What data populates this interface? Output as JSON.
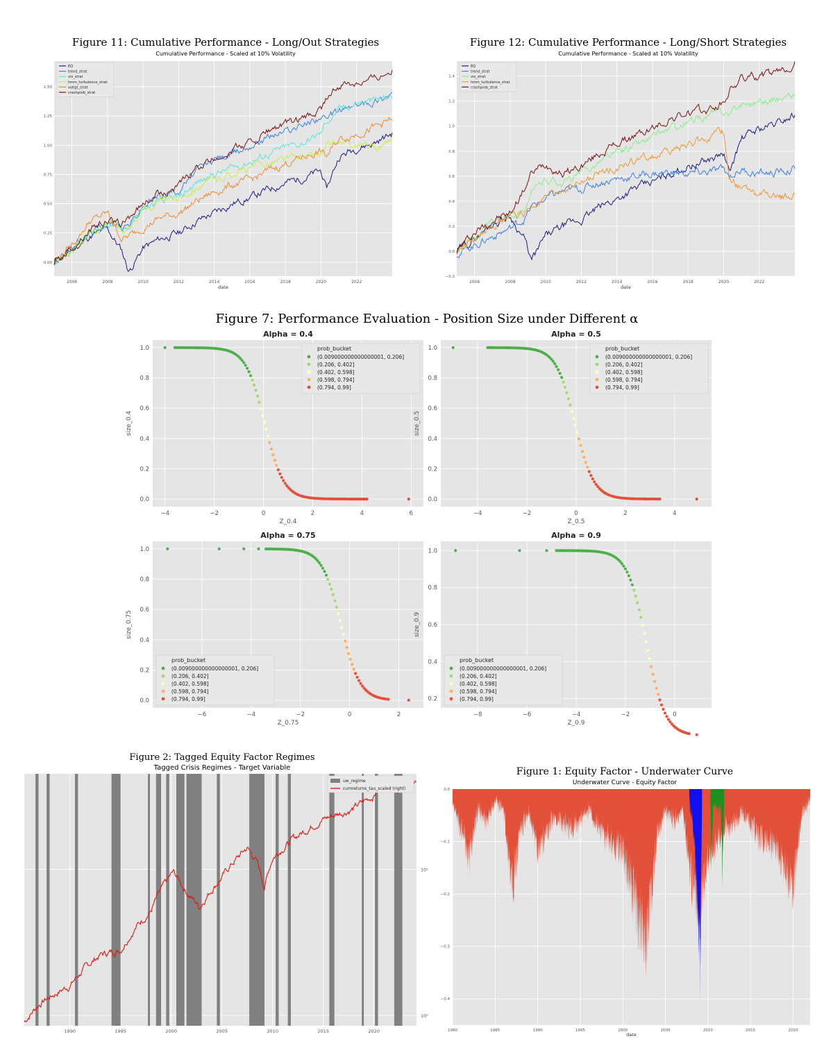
{
  "colors": {
    "panel_bg": "#e5e5e5",
    "grid": "#ffffff",
    "tick_text": "#555555",
    "bucket1": "#4daf4a",
    "bucket2": "#a6d96a",
    "bucket3": "#ffffbf",
    "bucket4": "#fdae61",
    "bucket5": "#e6503a",
    "regime_band": "#808080",
    "price_line": "#e8150b",
    "underwater_fill": "#e2503a",
    "crisis_blue": "#1010ee",
    "crisis_green": "#1f8f1f"
  },
  "figures": {
    "fig11": {
      "caption": "Figure 11: Cumulative Performance - Long/Out Strategies",
      "title": "Cumulative Performance - Scaled at 10% Volatility",
      "xlabel": "date",
      "x_ticks": [
        "2006",
        "2008",
        "2010",
        "2012",
        "2014",
        "2016",
        "2018",
        "2020",
        "2022"
      ],
      "y_ticks": [
        "0.00",
        "0.25",
        "0.50",
        "0.75",
        "1.00",
        "1.25",
        "1.50"
      ]
    },
    "fig12": {
      "caption": "Figure 12: Cumulative Performance - Long/Short Strategies",
      "title": "Cumulative Performance - Scaled at 10% Volatility",
      "xlabel": "date",
      "x_ticks": [
        "2006",
        "2008",
        "2010",
        "2012",
        "2014",
        "2016",
        "2018",
        "2020",
        "2022"
      ],
      "y_ticks": [
        "−0.2",
        "0.0",
        "0.2",
        "0.4",
        "0.6",
        "0.8",
        "1.0",
        "1.2",
        "1.4"
      ]
    },
    "fig7": {
      "caption": "Figure 7: Performance Evaluation - Position Size under Different α",
      "legend_title": "prob_bucket",
      "buckets": [
        "(0.009000000000000001, 0.206]",
        "(0.206, 0.402]",
        "(0.402, 0.598]",
        "(0.598, 0.794]",
        "(0.794, 0.99]"
      ],
      "panels": [
        {
          "title": "Alpha = 0.4",
          "xlabel": "Z_0.4",
          "ylabel": "size_0.4",
          "x_ticks": [
            "−4",
            "−2",
            "0",
            "2",
            "4",
            "6"
          ],
          "y_ticks": [
            "0.0",
            "0.2",
            "0.4",
            "0.6",
            "0.8",
            "1.0"
          ]
        },
        {
          "title": "Alpha = 0.5",
          "xlabel": "Z_0.5",
          "ylabel": "size_0.5",
          "x_ticks": [
            "−4",
            "−2",
            "0",
            "2",
            "4"
          ],
          "y_ticks": [
            "0.0",
            "0.2",
            "0.4",
            "0.6",
            "0.8",
            "1.0"
          ]
        },
        {
          "title": "Alpha = 0.75",
          "xlabel": "Z_0.75",
          "ylabel": "size_0.75",
          "x_ticks": [
            "−6",
            "−4",
            "−2",
            "0",
            "2"
          ],
          "y_ticks": [
            "0.0",
            "0.2",
            "0.4",
            "0.6",
            "0.8",
            "1.0"
          ]
        },
        {
          "title": "Alpha = 0.9",
          "xlabel": "Z_0.9",
          "ylabel": "size_0.9",
          "x_ticks": [
            "−8",
            "−6",
            "−4",
            "−2",
            "0"
          ],
          "y_ticks": [
            "0.2",
            "0.4",
            "0.6",
            "0.8",
            "1.0"
          ]
        }
      ]
    },
    "fig2": {
      "caption": "Figure 2: Tagged Equity Factor Regimes",
      "title": "Tagged Crisis Regimes - Target Variable",
      "x_ticks": [
        "1990",
        "1995",
        "2000",
        "2005",
        "2010",
        "2015",
        "2020"
      ],
      "y_right_ticks": [
        "10¹",
        "10⁰"
      ],
      "legend": [
        "uw_regime",
        "cumreturns_tau_scaled (right)"
      ]
    },
    "fig1": {
      "caption": "Figure 1: Equity Factor - Underwater Curve",
      "title": "Underwater Curve - Equity Factor",
      "xlabel": "date",
      "x_ticks": [
        "1980",
        "1985",
        "1990",
        "1995",
        "2000",
        "2005",
        "2010",
        "2015",
        "2020"
      ],
      "y_ticks": [
        "0.0",
        "−0.1",
        "−0.2",
        "−0.3",
        "−0.4"
      ]
    }
  },
  "chart_data": [
    {
      "type": "line",
      "title": "Cumulative Performance - Scaled at 10% Volatility",
      "xlabel": "date",
      "xlim": [
        2005,
        2024
      ],
      "ylim": [
        -0.12,
        1.72
      ],
      "x": [
        2005,
        2006,
        2007,
        2008,
        2008.8,
        2009.2,
        2010,
        2011,
        2012,
        2013,
        2014,
        2015,
        2016,
        2017,
        2018,
        2019,
        2020,
        2020.3,
        2021,
        2022,
        2023,
        2024
      ],
      "series": [
        {
          "name": "EQ",
          "color": "#1a1a80",
          "values": [
            0.0,
            0.1,
            0.22,
            0.28,
            0.1,
            -0.08,
            0.12,
            0.2,
            0.25,
            0.35,
            0.42,
            0.5,
            0.55,
            0.62,
            0.68,
            0.72,
            0.78,
            0.62,
            0.9,
            0.98,
            1.02,
            1.1
          ]
        },
        {
          "name": "trend_strat",
          "color": "#3a7ee8",
          "values": [
            0.0,
            0.12,
            0.25,
            0.35,
            0.3,
            0.32,
            0.48,
            0.58,
            0.62,
            0.78,
            0.88,
            0.92,
            1.0,
            1.08,
            1.12,
            1.18,
            1.25,
            1.2,
            1.3,
            1.34,
            1.38,
            1.45
          ]
        },
        {
          "name": "vix_strat",
          "color": "#55e8d8",
          "values": [
            0.0,
            0.1,
            0.24,
            0.33,
            0.3,
            0.3,
            0.45,
            0.52,
            0.55,
            0.68,
            0.75,
            0.8,
            0.86,
            0.92,
            0.98,
            1.02,
            1.1,
            1.2,
            1.3,
            1.36,
            1.38,
            1.42
          ]
        },
        {
          "name": "hmm_turbulence_strat",
          "color": "#c8f040",
          "values": [
            0.0,
            0.1,
            0.24,
            0.33,
            0.3,
            0.3,
            0.45,
            0.52,
            0.55,
            0.65,
            0.7,
            0.76,
            0.8,
            0.85,
            0.88,
            0.9,
            0.92,
            0.98,
            1.02,
            1.0,
            0.98,
            1.02
          ]
        },
        {
          "name": "voltgt_strat",
          "color": "#f08a30",
          "values": [
            0.0,
            0.15,
            0.35,
            0.42,
            0.2,
            0.22,
            0.3,
            0.38,
            0.42,
            0.52,
            0.6,
            0.66,
            0.7,
            0.78,
            0.84,
            0.9,
            0.95,
            0.9,
            1.05,
            1.1,
            1.15,
            1.22
          ]
        },
        {
          "name": "crashprob_strat",
          "color": "#7a1010",
          "values": [
            0.0,
            0.12,
            0.28,
            0.36,
            0.32,
            0.38,
            0.5,
            0.6,
            0.65,
            0.8,
            0.88,
            0.96,
            1.02,
            1.12,
            1.18,
            1.22,
            1.3,
            1.4,
            1.5,
            1.55,
            1.58,
            1.66
          ]
        }
      ]
    },
    {
      "type": "line",
      "title": "Cumulative Performance - Scaled at 10% Volatility",
      "xlabel": "date",
      "xlim": [
        2005,
        2024
      ],
      "ylim": [
        -0.2,
        1.52
      ],
      "x": [
        2005,
        2006,
        2007,
        2008,
        2008.8,
        2009.2,
        2010,
        2011,
        2012,
        2013,
        2014,
        2015,
        2016,
        2017,
        2018,
        2019,
        2020,
        2020.3,
        2021,
        2022,
        2023,
        2024
      ],
      "series": [
        {
          "name": "EQ",
          "color": "#1a1a80",
          "values": [
            0.0,
            0.1,
            0.22,
            0.28,
            0.1,
            -0.08,
            0.12,
            0.2,
            0.25,
            0.35,
            0.42,
            0.5,
            0.55,
            0.62,
            0.68,
            0.72,
            0.78,
            0.62,
            0.9,
            0.98,
            1.02,
            1.1
          ]
        },
        {
          "name": "trend_strat",
          "color": "#3a7ee8",
          "values": [
            -0.02,
            0.05,
            0.12,
            0.18,
            0.26,
            0.35,
            0.42,
            0.48,
            0.5,
            0.55,
            0.58,
            0.6,
            0.62,
            0.63,
            0.62,
            0.63,
            0.65,
            0.6,
            0.65,
            0.62,
            0.63,
            0.65
          ]
        },
        {
          "name": "vix_strat",
          "color": "#88ee88",
          "values": [
            0.0,
            0.12,
            0.22,
            0.3,
            0.35,
            0.45,
            0.58,
            0.55,
            0.62,
            0.72,
            0.78,
            0.85,
            0.9,
            0.98,
            1.02,
            1.08,
            1.12,
            1.1,
            1.18,
            1.2,
            1.22,
            1.25
          ]
        },
        {
          "name": "hmm_turbulence_strat",
          "color": "#f0962e",
          "values": [
            0.0,
            0.1,
            0.2,
            0.28,
            0.3,
            0.35,
            0.42,
            0.5,
            0.55,
            0.62,
            0.68,
            0.72,
            0.76,
            0.8,
            0.85,
            0.9,
            0.95,
            0.6,
            0.5,
            0.45,
            0.42,
            0.45
          ]
        },
        {
          "name": "crashprob_strat",
          "color": "#7a1010",
          "values": [
            0.0,
            0.15,
            0.25,
            0.3,
            0.5,
            0.62,
            0.7,
            0.62,
            0.68,
            0.78,
            0.86,
            0.92,
            0.98,
            1.06,
            1.1,
            1.12,
            1.18,
            1.28,
            1.38,
            1.4,
            1.42,
            1.5
          ]
        }
      ]
    },
    {
      "type": "scatter",
      "title": "Alpha = 0.4",
      "xlabel": "Z_0.4",
      "ylabel": "size_0.4",
      "xlim": [
        -4.5,
        6.5
      ],
      "ylim": [
        -0.05,
        1.05
      ],
      "legend_title": "prob_bucket",
      "alpha": 0.4,
      "x_range": [
        -3.6,
        4.2
      ],
      "outliers_x": [
        -4.0,
        -2.8,
        -2.2,
        2.8,
        3.3,
        4.2,
        5.9
      ]
    },
    {
      "type": "scatter",
      "title": "Alpha = 0.5",
      "xlabel": "Z_0.5",
      "ylabel": "size_0.5",
      "xlim": [
        -5.5,
        5.5
      ],
      "ylim": [
        -0.05,
        1.05
      ],
      "legend_title": "prob_bucket",
      "alpha": 0.5,
      "x_range": [
        -3.6,
        3.4
      ],
      "outliers_x": [
        -5.0,
        -3.5,
        -2.8,
        2.8,
        3.4,
        4.9
      ]
    },
    {
      "type": "scatter",
      "title": "Alpha = 0.75",
      "xlabel": "Z_0.75",
      "ylabel": "size_0.75",
      "xlim": [
        -8,
        3
      ],
      "ylim": [
        -0.05,
        1.05
      ],
      "legend_title": "prob_bucket",
      "alpha": 0.75,
      "x_range": [
        -3.4,
        1.6
      ],
      "outliers_x": [
        -7.4,
        -5.3,
        -4.3,
        -3.7,
        2.4
      ]
    },
    {
      "type": "scatter",
      "title": "Alpha = 0.9",
      "xlabel": "Z_0.9",
      "ylabel": "size_0.9",
      "xlim": [
        -9.5,
        1.5
      ],
      "ylim": [
        0.15,
        1.05
      ],
      "legend_title": "prob_bucket",
      "alpha": 0.9,
      "x_range": [
        -4.8,
        0.6
      ],
      "outliers_x": [
        -8.9,
        -6.3,
        -5.2,
        -4.6,
        0.9
      ]
    },
    {
      "type": "area",
      "title": "Tagged Crisis Regimes - Target Variable",
      "xlim": [
        1985.5,
        2024.2
      ],
      "legend": [
        "uw_regime",
        "cumreturns_tau_scaled (right)"
      ],
      "regimes": [
        [
          1986.6,
          1986.9
        ],
        [
          1987.7,
          1988.0
        ],
        [
          1990.5,
          1990.8
        ],
        [
          1994.1,
          1995.0
        ],
        [
          1997.7,
          1997.9
        ],
        [
          1998.5,
          1999.0
        ],
        [
          1999.5,
          1999.8
        ],
        [
          2000.5,
          2001.3
        ],
        [
          2001.5,
          2003.0
        ],
        [
          2004.5,
          2004.8
        ],
        [
          2007.7,
          2009.2
        ],
        [
          2010.3,
          2010.6
        ],
        [
          2011.5,
          2011.8
        ],
        [
          2015.6,
          2016.1
        ],
        [
          2018.8,
          2019.0
        ],
        [
          2020.1,
          2020.4
        ],
        [
          2022.0,
          2022.8
        ]
      ],
      "series": [
        {
          "name": "cumreturns_tau_scaled",
          "log_scale": true,
          "x": [
            1985.5,
            1987,
            1990,
            1993,
            1995,
            1998,
            2000.2,
            2001.5,
            2002.8,
            2005,
            2007.5,
            2008.5,
            2009.2,
            2010,
            2013,
            2015,
            2018,
            2020,
            2021,
            2022,
            2023,
            2024.2
          ],
          "values": [
            0.9,
            1.2,
            1.6,
            2.6,
            2.8,
            5.2,
            9.5,
            7.0,
            5.5,
            8.8,
            14.0,
            11.0,
            7.5,
            12.0,
            18.0,
            22.0,
            26.0,
            32.0,
            40.0,
            36.0,
            35.0,
            40.0
          ]
        }
      ]
    },
    {
      "type": "area",
      "title": "Underwater Curve - Equity Factor",
      "xlabel": "date",
      "xlim": [
        1980,
        2022
      ],
      "ylim": [
        -0.45,
        0.0
      ],
      "series": [
        {
          "name": "drawdown",
          "x": [
            1980,
            1981,
            1982,
            1983,
            1984,
            1985,
            1986,
            1987,
            1988,
            1989,
            1990,
            1992,
            1994,
            1996,
            1998,
            2000,
            2001,
            2002,
            2002.8,
            2003.2,
            2004,
            2005,
            2006,
            2007,
            2008,
            2009,
            2010,
            2012,
            2014,
            2016,
            2018,
            2020,
            2021,
            2022
          ],
          "values": [
            -0.03,
            -0.1,
            -0.16,
            -0.05,
            -0.08,
            -0.03,
            -0.05,
            -0.24,
            -0.1,
            -0.05,
            -0.15,
            -0.07,
            -0.1,
            -0.05,
            -0.12,
            -0.16,
            -0.24,
            -0.33,
            -0.38,
            -0.3,
            -0.12,
            -0.05,
            -0.08,
            -0.05,
            -0.22,
            -0.3,
            -0.16,
            -0.1,
            -0.06,
            -0.12,
            -0.14,
            -0.25,
            -0.06,
            -0.03
          ]
        },
        {
          "name": "crisis_blue",
          "x": [
            2007.8,
            2008.3,
            2008.9,
            2009.1,
            2009.3
          ],
          "values": [
            -0.03,
            -0.1,
            -0.34,
            -0.44,
            -0.05
          ]
        },
        {
          "name": "crisis_green",
          "x": [
            2010.3,
            2010.4,
            2010.6,
            2011.5,
            2011.7,
            2011.9
          ],
          "values": [
            -0.04,
            -0.19,
            -0.04,
            -0.05,
            -0.19,
            -0.03
          ]
        }
      ]
    }
  ]
}
